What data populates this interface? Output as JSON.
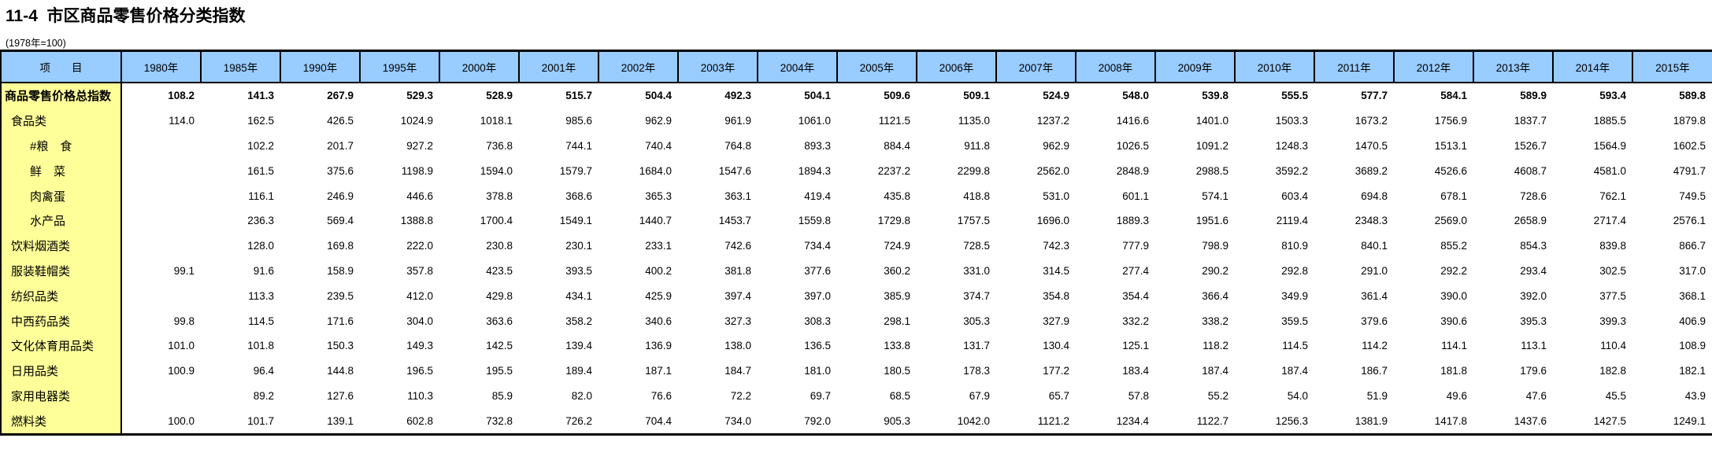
{
  "page": {
    "title": "11-4  市区商品零售价格分类指数",
    "subtitle": "(1978年=100)"
  },
  "table": {
    "item_header": "项　　目",
    "years": [
      "1980年",
      "1985年",
      "1990年",
      "1995年",
      "2000年",
      "2001年",
      "2002年",
      "2003年",
      "2004年",
      "2005年",
      "2006年",
      "2007年",
      "2008年",
      "2009年",
      "2010年",
      "2011年",
      "2012年",
      "2013年",
      "2014年",
      "2015年"
    ],
    "rows": [
      {
        "label": "商品零售价格总指数",
        "level": 0,
        "bold": true,
        "values": [
          "108.2",
          "141.3",
          "267.9",
          "529.3",
          "528.9",
          "515.7",
          "504.4",
          "492.3",
          "504.1",
          "509.6",
          "509.1",
          "524.9",
          "548.0",
          "539.8",
          "555.5",
          "577.7",
          "584.1",
          "589.9",
          "593.4",
          "589.8"
        ]
      },
      {
        "label": "食品类",
        "level": 1,
        "bold": false,
        "values": [
          "114.0",
          "162.5",
          "426.5",
          "1024.9",
          "1018.1",
          "985.6",
          "962.9",
          "961.9",
          "1061.0",
          "1121.5",
          "1135.0",
          "1237.2",
          "1416.6",
          "1401.0",
          "1503.3",
          "1673.2",
          "1756.9",
          "1837.7",
          "1885.5",
          "1879.8"
        ]
      },
      {
        "label": "#粮　食",
        "level": 2,
        "bold": false,
        "values": [
          "",
          "102.2",
          "201.7",
          "927.2",
          "736.8",
          "744.1",
          "740.4",
          "764.8",
          "893.3",
          "884.4",
          "911.8",
          "962.9",
          "1026.5",
          "1091.2",
          "1248.3",
          "1470.5",
          "1513.1",
          "1526.7",
          "1564.9",
          "1602.5"
        ]
      },
      {
        "label": "鲜　菜",
        "level": 2,
        "bold": false,
        "values": [
          "",
          "161.5",
          "375.6",
          "1198.9",
          "1594.0",
          "1579.7",
          "1684.0",
          "1547.6",
          "1894.3",
          "2237.2",
          "2299.8",
          "2562.0",
          "2848.9",
          "2988.5",
          "3592.2",
          "3689.2",
          "4526.6",
          "4608.7",
          "4581.0",
          "4791.7"
        ]
      },
      {
        "label": "肉禽蛋",
        "level": 2,
        "bold": false,
        "values": [
          "",
          "116.1",
          "246.9",
          "446.6",
          "378.8",
          "368.6",
          "365.3",
          "363.1",
          "419.4",
          "435.8",
          "418.8",
          "531.0",
          "601.1",
          "574.1",
          "603.4",
          "694.8",
          "678.1",
          "728.6",
          "762.1",
          "749.5"
        ]
      },
      {
        "label": "水产品",
        "level": 2,
        "bold": false,
        "values": [
          "",
          "236.3",
          "569.4",
          "1388.8",
          "1700.4",
          "1549.1",
          "1440.7",
          "1453.7",
          "1559.8",
          "1729.8",
          "1757.5",
          "1696.0",
          "1889.3",
          "1951.6",
          "2119.4",
          "2348.3",
          "2569.0",
          "2658.9",
          "2717.4",
          "2576.1"
        ]
      },
      {
        "label": "饮料烟酒类",
        "level": 1,
        "bold": false,
        "values": [
          "",
          "128.0",
          "169.8",
          "222.0",
          "230.8",
          "230.1",
          "233.1",
          "742.6",
          "734.4",
          "724.9",
          "728.5",
          "742.3",
          "777.9",
          "798.9",
          "810.9",
          "840.1",
          "855.2",
          "854.3",
          "839.8",
          "866.7"
        ]
      },
      {
        "label": "服装鞋帽类",
        "level": 1,
        "bold": false,
        "values": [
          "99.1",
          "91.6",
          "158.9",
          "357.8",
          "423.5",
          "393.5",
          "400.2",
          "381.8",
          "377.6",
          "360.2",
          "331.0",
          "314.5",
          "277.4",
          "290.2",
          "292.8",
          "291.0",
          "292.2",
          "293.4",
          "302.5",
          "317.0"
        ]
      },
      {
        "label": "纺织品类",
        "level": 1,
        "bold": false,
        "values": [
          "",
          "113.3",
          "239.5",
          "412.0",
          "429.8",
          "434.1",
          "425.9",
          "397.4",
          "397.0",
          "385.9",
          "374.7",
          "354.8",
          "354.4",
          "366.4",
          "349.9",
          "361.4",
          "390.0",
          "392.0",
          "377.5",
          "368.1"
        ]
      },
      {
        "label": "中西药品类",
        "level": 1,
        "bold": false,
        "values": [
          "99.8",
          "114.5",
          "171.6",
          "304.0",
          "363.6",
          "358.2",
          "340.6",
          "327.3",
          "308.3",
          "298.1",
          "305.3",
          "327.9",
          "332.2",
          "338.2",
          "359.5",
          "379.6",
          "390.6",
          "395.3",
          "399.3",
          "406.9"
        ]
      },
      {
        "label": "文化体育用品类",
        "level": 1,
        "bold": false,
        "values": [
          "101.0",
          "101.8",
          "150.3",
          "149.3",
          "142.5",
          "139.4",
          "136.9",
          "138.0",
          "136.5",
          "133.8",
          "131.7",
          "130.4",
          "125.1",
          "118.2",
          "114.5",
          "114.2",
          "114.1",
          "113.1",
          "110.4",
          "108.9"
        ]
      },
      {
        "label": "日用品类",
        "level": 1,
        "bold": false,
        "values": [
          "100.9",
          "96.4",
          "144.8",
          "196.5",
          "195.5",
          "189.4",
          "187.1",
          "184.7",
          "181.0",
          "180.5",
          "178.3",
          "177.2",
          "183.4",
          "187.4",
          "187.4",
          "186.7",
          "181.8",
          "179.6",
          "182.8",
          "182.1"
        ]
      },
      {
        "label": "家用电器类",
        "level": 1,
        "bold": false,
        "values": [
          "",
          "89.2",
          "127.6",
          "110.3",
          "85.9",
          "82.0",
          "76.6",
          "72.2",
          "69.7",
          "68.5",
          "67.9",
          "65.7",
          "57.8",
          "55.2",
          "54.0",
          "51.9",
          "49.6",
          "47.6",
          "45.5",
          "43.9"
        ]
      },
      {
        "label": "燃料类",
        "level": 1,
        "bold": false,
        "values": [
          "100.0",
          "101.7",
          "139.1",
          "602.8",
          "732.8",
          "726.2",
          "704.4",
          "734.0",
          "792.0",
          "905.3",
          "1042.0",
          "1121.2",
          "1234.4",
          "1122.7",
          "1256.3",
          "1381.9",
          "1417.8",
          "1437.6",
          "1427.5",
          "1249.1"
        ]
      }
    ]
  }
}
